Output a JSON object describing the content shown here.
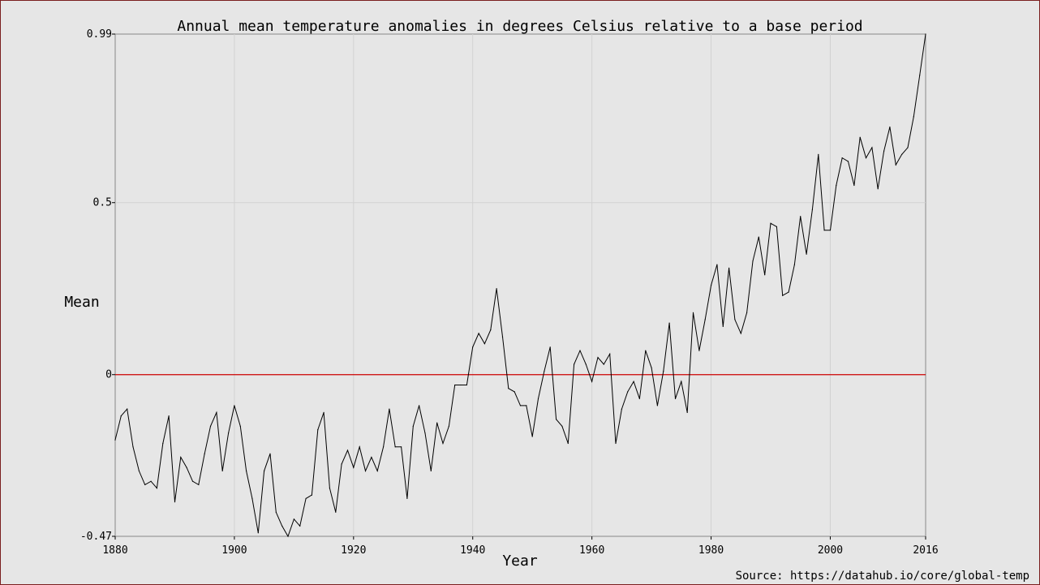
{
  "chart_data": {
    "type": "line",
    "title": "Annual mean temperature anomalies in degrees Celsius relative to a base period",
    "xlabel": "Year",
    "ylabel": "Mean",
    "source": "Source: https://datahub.io/core/global-temp",
    "xlim": [
      1880,
      2016
    ],
    "ylim": [
      -0.47,
      0.99
    ],
    "x_ticks": [
      1880,
      1900,
      1920,
      1940,
      1960,
      1980,
      2000,
      2016
    ],
    "y_ticks": [
      -0.47,
      0,
      0.5,
      0.99
    ],
    "y_tick_labels": [
      "-0.47",
      "0",
      "0.5",
      "0.99"
    ],
    "grid": true,
    "reference_line": {
      "y": 0,
      "color": "#cc0000"
    },
    "series": [
      {
        "color": "#000000",
        "x": [
          1880,
          1881,
          1882,
          1883,
          1884,
          1885,
          1886,
          1887,
          1888,
          1889,
          1890,
          1891,
          1892,
          1893,
          1894,
          1895,
          1896,
          1897,
          1898,
          1899,
          1900,
          1901,
          1902,
          1903,
          1904,
          1905,
          1906,
          1907,
          1908,
          1909,
          1910,
          1911,
          1912,
          1913,
          1914,
          1915,
          1916,
          1917,
          1918,
          1919,
          1920,
          1921,
          1922,
          1923,
          1924,
          1925,
          1926,
          1927,
          1928,
          1929,
          1930,
          1931,
          1932,
          1933,
          1934,
          1935,
          1936,
          1937,
          1938,
          1939,
          1940,
          1941,
          1942,
          1943,
          1944,
          1945,
          1946,
          1947,
          1948,
          1949,
          1950,
          1951,
          1952,
          1953,
          1954,
          1955,
          1956,
          1957,
          1958,
          1959,
          1960,
          1961,
          1962,
          1963,
          1964,
          1965,
          1966,
          1967,
          1968,
          1969,
          1970,
          1971,
          1972,
          1973,
          1974,
          1975,
          1976,
          1977,
          1978,
          1979,
          1980,
          1981,
          1982,
          1983,
          1984,
          1985,
          1986,
          1987,
          1988,
          1989,
          1990,
          1991,
          1992,
          1993,
          1994,
          1995,
          1996,
          1997,
          1998,
          1999,
          2000,
          2001,
          2002,
          2003,
          2004,
          2005,
          2006,
          2007,
          2008,
          2009,
          2010,
          2011,
          2012,
          2013,
          2014,
          2015,
          2016
        ],
        "y": [
          -0.19,
          -0.12,
          -0.1,
          -0.21,
          -0.28,
          -0.32,
          -0.31,
          -0.33,
          -0.2,
          -0.12,
          -0.37,
          -0.24,
          -0.27,
          -0.31,
          -0.32,
          -0.23,
          -0.15,
          -0.11,
          -0.28,
          -0.17,
          -0.09,
          -0.15,
          -0.28,
          -0.36,
          -0.46,
          -0.28,
          -0.23,
          -0.4,
          -0.44,
          -0.47,
          -0.42,
          -0.44,
          -0.36,
          -0.35,
          -0.16,
          -0.11,
          -0.33,
          -0.4,
          -0.26,
          -0.22,
          -0.27,
          -0.21,
          -0.28,
          -0.24,
          -0.28,
          -0.21,
          -0.1,
          -0.21,
          -0.21,
          -0.36,
          -0.15,
          -0.09,
          -0.17,
          -0.28,
          -0.14,
          -0.2,
          -0.15,
          -0.03,
          -0.03,
          -0.03,
          0.08,
          0.12,
          0.09,
          0.13,
          0.25,
          0.11,
          -0.04,
          -0.05,
          -0.09,
          -0.09,
          -0.18,
          -0.07,
          0.01,
          0.08,
          -0.13,
          -0.15,
          -0.2,
          0.03,
          0.07,
          0.03,
          -0.02,
          0.05,
          0.03,
          0.06,
          -0.2,
          -0.1,
          -0.05,
          -0.02,
          -0.07,
          0.07,
          0.02,
          -0.09,
          0.01,
          0.15,
          -0.07,
          -0.02,
          -0.11,
          0.18,
          0.07,
          0.16,
          0.26,
          0.32,
          0.14,
          0.31,
          0.16,
          0.12,
          0.18,
          0.33,
          0.4,
          0.29,
          0.44,
          0.43,
          0.23,
          0.24,
          0.32,
          0.46,
          0.35,
          0.48,
          0.64,
          0.42,
          0.42,
          0.55,
          0.63,
          0.62,
          0.55,
          0.69,
          0.63,
          0.66,
          0.54,
          0.65,
          0.72,
          0.61,
          0.64,
          0.66,
          0.75,
          0.87,
          0.99
        ]
      }
    ]
  }
}
